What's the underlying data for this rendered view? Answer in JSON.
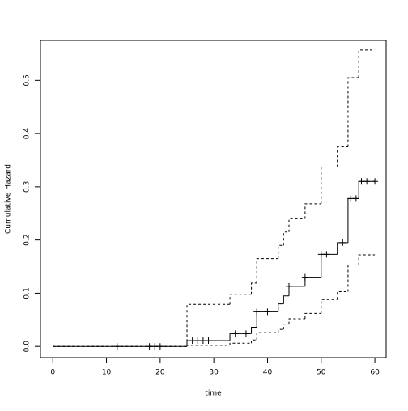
{
  "chart_data": {
    "type": "step",
    "x_label": "time",
    "y_label": "Cumulative Hazard",
    "xlim": [
      -2.3,
      62.1
    ],
    "ylim": [
      -0.021,
      0.575
    ],
    "xticks": [
      0,
      10,
      20,
      30,
      40,
      50,
      60
    ],
    "yticks": [
      {
        "value": 0,
        "label": "0.0"
      },
      0.1,
      0.2,
      0.3,
      0.4,
      0.5
    ],
    "x": [
      0,
      25,
      33,
      37,
      38,
      42,
      43,
      44,
      47,
      50,
      53,
      55,
      57,
      60
    ],
    "series": [
      {
        "style": "solid",
        "color": "#000000",
        "values": [
          0,
          0.011,
          0.024,
          0.036,
          0.065,
          0.08,
          0.095,
          0.113,
          0.13,
          0.173,
          0.195,
          0.278,
          0.31,
          0.31
        ]
      },
      {
        "style": "dashed",
        "color": "#000000",
        "values": [
          0,
          0.079,
          0.098,
          0.119,
          0.165,
          0.19,
          0.215,
          0.24,
          0.268,
          0.337,
          0.375,
          0.505,
          0.557,
          0.557
        ]
      },
      {
        "style": "dashed",
        "color": "#000000",
        "values": [
          0,
          0.002,
          0.006,
          0.012,
          0.026,
          0.032,
          0.042,
          0.052,
          0.062,
          0.088,
          0.103,
          0.153,
          0.172,
          0.172
        ]
      }
    ],
    "censored": {
      "x": [
        12,
        18,
        19,
        20,
        26,
        27,
        28,
        29,
        34,
        36,
        38,
        40,
        44,
        47,
        50,
        51,
        54,
        55.5,
        56.5,
        57.5,
        58.5,
        60
      ],
      "values": [
        0,
        0,
        0,
        0,
        0.011,
        0.011,
        0.011,
        0.011,
        0.024,
        0.024,
        0.065,
        0.065,
        0.113,
        0.13,
        0.173,
        0.173,
        0.195,
        0.278,
        0.278,
        0.31,
        0.31,
        0.31
      ]
    }
  }
}
